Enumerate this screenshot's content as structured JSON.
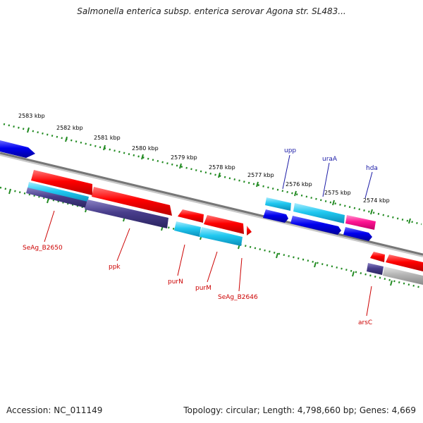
{
  "title": "Salmonella enterica subsp. enterica serovar Agona str. SL483...",
  "footer": {
    "accession": "Accession: NC_011149",
    "summary": "Topology: circular; Length: 4,798,660 bp; Genes: 4,669"
  },
  "scale_labels": [
    "2583 kbp",
    "2582 kbp",
    "2581 kbp",
    "2580 kbp",
    "2579 kbp",
    "2578 kbp",
    "2577 kbp",
    "2576 kbp",
    "2575 kbp",
    "2574 kbp"
  ],
  "gene_labels_top": [
    "upp",
    "uraA",
    "hda"
  ],
  "gene_labels_bottom": [
    "SeAg_B2650",
    "ppk",
    "purN",
    "purM",
    "SeAg_B2646",
    "arsC"
  ],
  "colors": {
    "red": "#ff0000",
    "blue": "#0000ee",
    "cyan": "#20c8f0",
    "purple": "#483d8b",
    "pink": "#ff1493",
    "gray": "#b4b4b4",
    "backbone": "#777777",
    "tick": "#228b22",
    "label_blue": "#1a1aa6",
    "label_red": "#cc0000"
  }
}
